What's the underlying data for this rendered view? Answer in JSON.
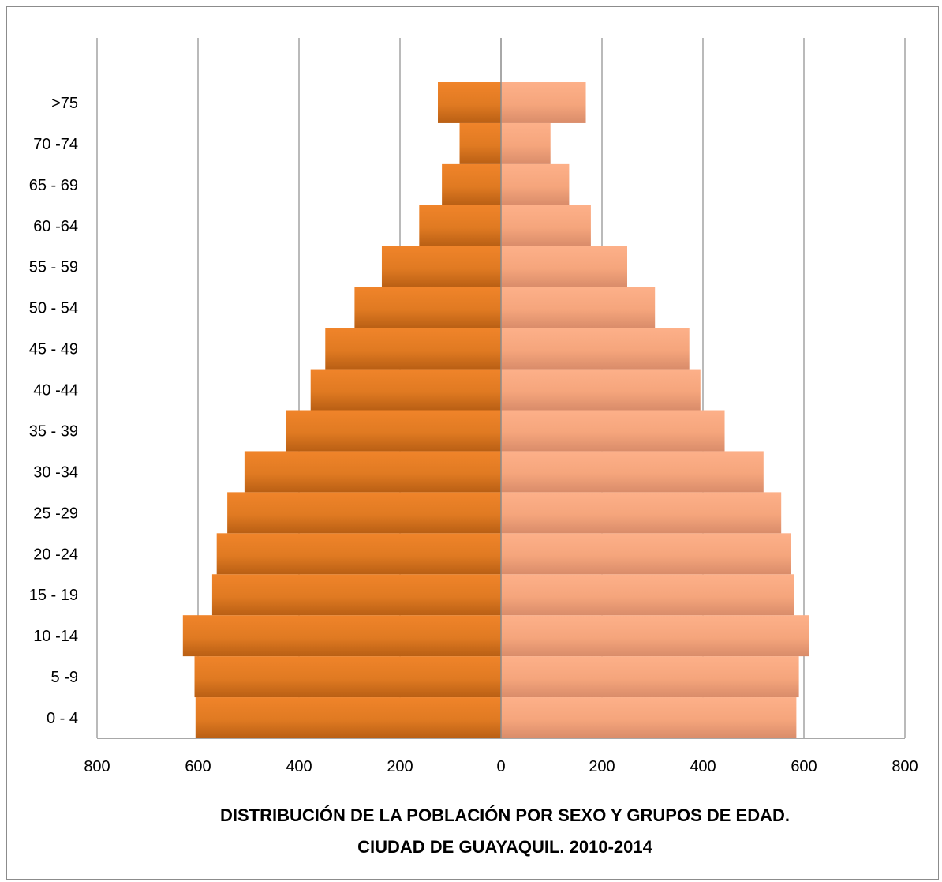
{
  "chart_data": {
    "type": "bar",
    "orientation": "horizontal",
    "title_lines": [
      "DISTRIBUCIÓN DE LA POBLACIÓN POR SEXO Y GRUPOS DE EDAD.",
      "CIUDAD DE GUAYAQUIL. 2010-2014"
    ],
    "categories": [
      "0 - 4",
      "5 -9",
      "10 -14",
      "15 - 19",
      "20 -24",
      "25 -29",
      "30 -34",
      "35 - 39",
      "40 -44",
      "45 - 49",
      "50 - 54",
      "55 - 59",
      "60 -64",
      "65 - 69",
      "70 -74",
      ">75"
    ],
    "series": [
      {
        "side": "left",
        "color": "#e07a22",
        "color_dark": "#b95f14",
        "values": [
          605,
          607,
          630,
          572,
          563,
          542,
          508,
          426,
          377,
          348,
          290,
          236,
          162,
          117,
          82,
          125
        ]
      },
      {
        "side": "right",
        "color": "#f9a97f",
        "color_dark": "#d98c6a",
        "values": [
          585,
          590,
          610,
          580,
          575,
          555,
          520,
          443,
          395,
          373,
          305,
          250,
          178,
          135,
          98,
          168
        ]
      }
    ],
    "xlim": [
      -800,
      800
    ],
    "xticks": [
      -800,
      -600,
      -400,
      -200,
      0,
      200,
      400,
      600,
      800
    ],
    "xtick_labels": [
      "800",
      "600",
      "400",
      "200",
      "0",
      "200",
      "400",
      "600",
      "800"
    ],
    "grid": true,
    "legend": "none"
  }
}
